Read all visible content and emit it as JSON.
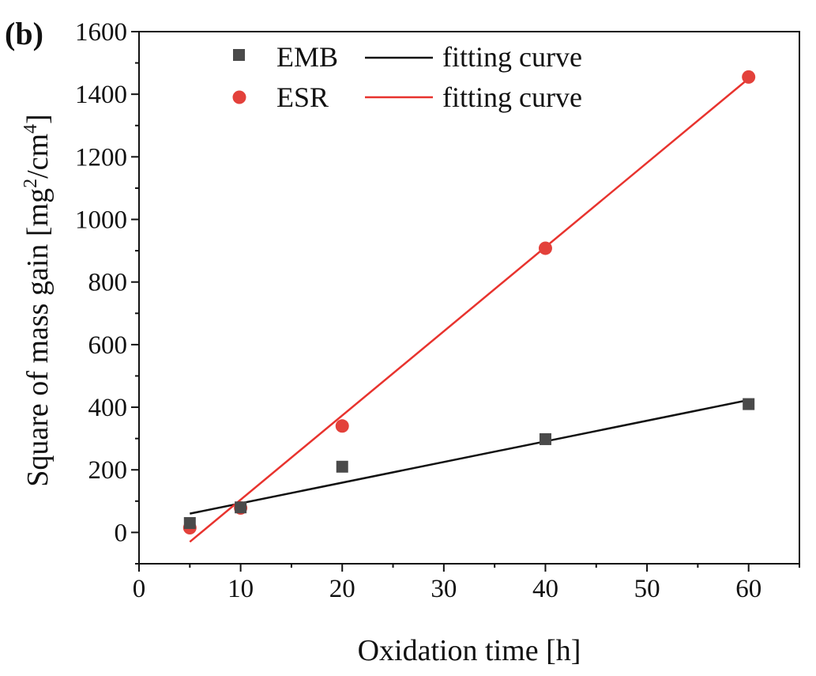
{
  "panel_label": "(b)",
  "chart_data": {
    "type": "scatter",
    "xlabel": "Oxidation time [h]",
    "ylabel": {
      "prefix": "Square of mass gain [mg",
      "sup1": "2",
      "middle": "/cm",
      "sup2": "4",
      "suffix": "]"
    },
    "xlim": [
      0,
      65
    ],
    "ylim": [
      -100,
      1600
    ],
    "x_ticks": [
      0,
      10,
      20,
      30,
      40,
      50,
      60
    ],
    "y_ticks": [
      0,
      200,
      400,
      600,
      800,
      1000,
      1200,
      1400,
      1600
    ],
    "grid": false,
    "legend_position": "top",
    "series": [
      {
        "name": "EMB",
        "marker": "square",
        "color": "#4a4a4a",
        "x": [
          5,
          10,
          20,
          40,
          60
        ],
        "y": [
          30,
          80,
          210,
          298,
          410
        ],
        "fit": {
          "label": "fitting curve",
          "color": "#111111",
          "x": [
            5,
            60
          ],
          "y": [
            60,
            423
          ]
        }
      },
      {
        "name": "ESR",
        "marker": "circle",
        "color": "#e3413b",
        "x": [
          5,
          10,
          20,
          40,
          60
        ],
        "y": [
          15,
          78,
          340,
          908,
          1455
        ],
        "fit": {
          "label": "fitting curve",
          "color": "#e8332e",
          "x": [
            5,
            60
          ],
          "y": [
            -30,
            1450
          ]
        }
      }
    ]
  }
}
